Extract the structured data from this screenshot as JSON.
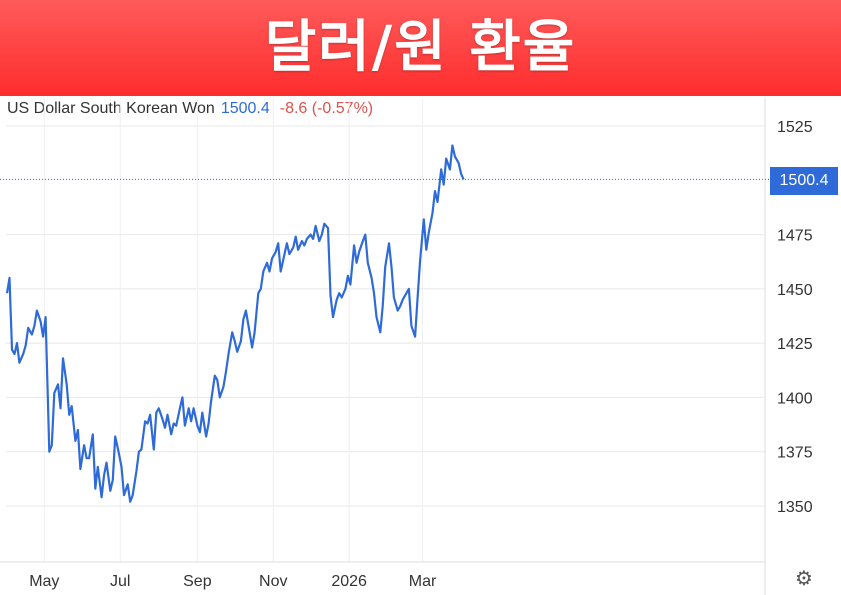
{
  "banner": {
    "title": "달러/원 환율"
  },
  "header": {
    "name": "US Dollar South Korean Won",
    "price": "1500.4",
    "change": "-8.6 (-0.57%)"
  },
  "icons": {
    "settings": "gear-icon"
  },
  "colors": {
    "banner": "#ff3b3b",
    "line": "#2f6bd8",
    "grid": "#e6e6e6"
  },
  "chart_data": {
    "type": "line",
    "title": "",
    "xlabel": "",
    "ylabel": "",
    "x_ticks": [
      "May",
      "Jul",
      "Sep",
      "Nov",
      "2026",
      "Mar"
    ],
    "y_ticks": [
      1350,
      1375,
      1400,
      1425,
      1450,
      1475,
      1500,
      1525
    ],
    "ylim": [
      1325,
      1535
    ],
    "grid": true,
    "current_value": 1500.4,
    "current_label": "1500.4",
    "series": [
      {
        "x": [
          "2025-04-01",
          "2025-04-03",
          "2025-04-05",
          "2025-04-07",
          "2025-04-09",
          "2025-04-11",
          "2025-04-14",
          "2025-04-16",
          "2025-04-18",
          "2025-04-21",
          "2025-04-23",
          "2025-04-25",
          "2025-04-28",
          "2025-04-30",
          "2025-05-02",
          "2025-05-05",
          "2025-05-07",
          "2025-05-09",
          "2025-05-12",
          "2025-05-14",
          "2025-05-16",
          "2025-05-19",
          "2025-05-21",
          "2025-05-23",
          "2025-05-26",
          "2025-05-28",
          "2025-05-30",
          "2025-06-02",
          "2025-06-04",
          "2025-06-06",
          "2025-06-09",
          "2025-06-11",
          "2025-06-13",
          "2025-06-16",
          "2025-06-18",
          "2025-06-20",
          "2025-06-23",
          "2025-06-25",
          "2025-06-27",
          "2025-06-30",
          "2025-07-02",
          "2025-07-04",
          "2025-07-07",
          "2025-07-09",
          "2025-07-11",
          "2025-07-14",
          "2025-07-16",
          "2025-07-18",
          "2025-07-21",
          "2025-07-23",
          "2025-07-25",
          "2025-07-28",
          "2025-07-30",
          "2025-08-01",
          "2025-08-04",
          "2025-08-06",
          "2025-08-08",
          "2025-08-11",
          "2025-08-13",
          "2025-08-15",
          "2025-08-18",
          "2025-08-20",
          "2025-08-22",
          "2025-08-25",
          "2025-08-27",
          "2025-08-29",
          "2025-09-01",
          "2025-09-03",
          "2025-09-05",
          "2025-09-08",
          "2025-09-10",
          "2025-09-12",
          "2025-09-15",
          "2025-09-17",
          "2025-09-19",
          "2025-09-22",
          "2025-09-24",
          "2025-09-26",
          "2025-09-29",
          "2025-10-01",
          "2025-10-03",
          "2025-10-06",
          "2025-10-08",
          "2025-10-10",
          "2025-10-13",
          "2025-10-15",
          "2025-10-17",
          "2025-10-20",
          "2025-10-22",
          "2025-10-24",
          "2025-10-27",
          "2025-10-29",
          "2025-10-31",
          "2025-11-03",
          "2025-11-05",
          "2025-11-07",
          "2025-11-10",
          "2025-11-12",
          "2025-11-14",
          "2025-11-17",
          "2025-11-19",
          "2025-11-21",
          "2025-11-24",
          "2025-11-26",
          "2025-11-28",
          "2025-12-01",
          "2025-12-03",
          "2025-12-05",
          "2025-12-08",
          "2025-12-10",
          "2025-12-12",
          "2025-12-15",
          "2025-12-17",
          "2025-12-19",
          "2025-12-22",
          "2025-12-24",
          "2025-12-26",
          "2025-12-29",
          "2025-12-31",
          "2026-01-02",
          "2026-01-05",
          "2026-01-07",
          "2026-01-09",
          "2026-01-12",
          "2026-01-14",
          "2026-01-16",
          "2026-01-19",
          "2026-01-21",
          "2026-01-23",
          "2026-01-26",
          "2026-01-28",
          "2026-01-30",
          "2026-02-02",
          "2026-02-04",
          "2026-02-06",
          "2026-02-09",
          "2026-02-11",
          "2026-02-13",
          "2026-02-16",
          "2026-02-18",
          "2026-02-20",
          "2026-02-23",
          "2026-02-25",
          "2026-02-27",
          "2026-03-02",
          "2026-03-04",
          "2026-03-06",
          "2026-03-09",
          "2026-03-11",
          "2026-03-13",
          "2026-03-16",
          "2026-03-18",
          "2026-03-20",
          "2026-03-23",
          "2026-03-25",
          "2026-03-27",
          "2026-03-30",
          "2026-04-01",
          "2026-04-03"
        ],
        "values": [
          1448,
          1455,
          1422,
          1420,
          1425,
          1416,
          1420,
          1424,
          1432,
          1429,
          1433,
          1440,
          1435,
          1428,
          1437,
          1375,
          1378,
          1402,
          1406,
          1395,
          1418,
          1406,
          1392,
          1396,
          1380,
          1385,
          1367,
          1378,
          1372,
          1372,
          1383,
          1358,
          1368,
          1354,
          1364,
          1370,
          1357,
          1362,
          1382,
          1374,
          1368,
          1355,
          1360,
          1352,
          1355,
          1366,
          1375,
          1376,
          1389,
          1388,
          1392,
          1376,
          1393,
          1395,
          1390,
          1386,
          1392,
          1383,
          1388,
          1387,
          1395,
          1400,
          1387,
          1395,
          1389,
          1395,
          1387,
          1384,
          1393,
          1382,
          1388,
          1398,
          1410,
          1408,
          1400,
          1405,
          1412,
          1420,
          1430,
          1426,
          1421,
          1426,
          1436,
          1440,
          1430,
          1423,
          1430,
          1448,
          1450,
          1458,
          1462,
          1458,
          1464,
          1467,
          1471,
          1458,
          1466,
          1471,
          1466,
          1469,
          1474,
          1468,
          1472,
          1470,
          1473,
          1475,
          1473,
          1479,
          1472,
          1475,
          1480,
          1478,
          1447,
          1437,
          1445,
          1448,
          1446,
          1450,
          1456,
          1452,
          1470,
          1462,
          1467,
          1472,
          1475,
          1462,
          1455,
          1448,
          1437,
          1430,
          1442,
          1460,
          1471,
          1460,
          1446,
          1440,
          1442,
          1445,
          1448,
          1450,
          1433,
          1428,
          1446,
          1463,
          1482,
          1468,
          1476,
          1485,
          1495,
          1490,
          1505,
          1498,
          1510,
          1505,
          1516,
          1511,
          1508,
          1503,
          1500.4
        ]
      }
    ]
  }
}
